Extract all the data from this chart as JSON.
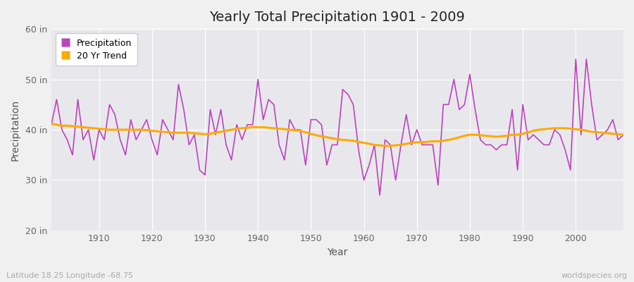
{
  "title": "Yearly Total Precipitation 1901 - 2009",
  "xlabel": "Year",
  "ylabel": "Precipitation",
  "subtitle_left": "Latitude 18.25 Longitude -68.75",
  "subtitle_right": "worldspecies.org",
  "ylim": [
    20,
    60
  ],
  "yticks": [
    20,
    30,
    40,
    50,
    60
  ],
  "ytick_labels": [
    "20 in",
    "30 in",
    "40 in",
    "50 in",
    "60 in"
  ],
  "xlim": [
    1901,
    2009
  ],
  "xticks": [
    1910,
    1920,
    1930,
    1940,
    1950,
    1960,
    1970,
    1980,
    1990,
    2000
  ],
  "precipitation_color": "#bb44bb",
  "trend_color": "#ffaa00",
  "fig_bg_color": "#f0f0f0",
  "plot_bg_color": "#e8e8ec",
  "grid_color": "#ffffff",
  "years": [
    1901,
    1902,
    1903,
    1904,
    1905,
    1906,
    1907,
    1908,
    1909,
    1910,
    1911,
    1912,
    1913,
    1914,
    1915,
    1916,
    1917,
    1918,
    1919,
    1920,
    1921,
    1922,
    1923,
    1924,
    1925,
    1926,
    1927,
    1928,
    1929,
    1930,
    1931,
    1932,
    1933,
    1934,
    1935,
    1936,
    1937,
    1938,
    1939,
    1940,
    1941,
    1942,
    1943,
    1944,
    1945,
    1946,
    1947,
    1948,
    1949,
    1950,
    1951,
    1952,
    1953,
    1954,
    1955,
    1956,
    1957,
    1958,
    1959,
    1960,
    1961,
    1962,
    1963,
    1964,
    1965,
    1966,
    1967,
    1968,
    1969,
    1970,
    1971,
    1972,
    1973,
    1974,
    1975,
    1976,
    1977,
    1978,
    1979,
    1980,
    1981,
    1982,
    1983,
    1984,
    1985,
    1986,
    1987,
    1988,
    1989,
    1990,
    1991,
    1992,
    1993,
    1994,
    1995,
    1996,
    1997,
    1998,
    1999,
    2000,
    2001,
    2002,
    2003,
    2004,
    2005,
    2006,
    2007,
    2008,
    2009
  ],
  "precipitation": [
    41,
    46,
    40,
    38,
    35,
    46,
    38,
    40,
    34,
    40,
    38,
    45,
    43,
    38,
    35,
    42,
    38,
    40,
    42,
    38,
    35,
    42,
    40,
    38,
    49,
    44,
    37,
    39,
    32,
    31,
    44,
    39,
    44,
    37,
    34,
    41,
    38,
    41,
    41,
    50,
    42,
    46,
    45,
    37,
    34,
    42,
    40,
    40,
    33,
    42,
    42,
    41,
    33,
    37,
    37,
    48,
    47,
    45,
    36,
    30,
    33,
    37,
    27,
    38,
    37,
    30,
    37,
    43,
    37,
    40,
    37,
    37,
    37,
    29,
    45,
    45,
    50,
    44,
    45,
    51,
    44,
    38,
    37,
    37,
    36,
    37,
    37,
    44,
    32,
    45,
    38,
    39,
    38,
    37,
    37,
    40,
    39,
    36,
    32,
    54,
    39,
    54,
    45,
    38,
    39,
    40,
    42,
    38,
    39
  ],
  "trend": [
    41.2,
    41.0,
    40.8,
    40.8,
    40.7,
    40.6,
    40.5,
    40.4,
    40.3,
    40.2,
    40.1,
    40.0,
    40.0,
    40.0,
    40.0,
    40.0,
    40.0,
    40.0,
    39.9,
    39.8,
    39.7,
    39.6,
    39.5,
    39.4,
    39.4,
    39.4,
    39.4,
    39.3,
    39.2,
    39.1,
    39.2,
    39.4,
    39.6,
    39.8,
    40.0,
    40.2,
    40.3,
    40.4,
    40.5,
    40.5,
    40.5,
    40.4,
    40.3,
    40.2,
    40.1,
    40.0,
    39.9,
    39.8,
    39.5,
    39.2,
    38.9,
    38.7,
    38.5,
    38.3,
    38.1,
    38.0,
    37.9,
    37.8,
    37.6,
    37.4,
    37.2,
    37.0,
    36.9,
    36.8,
    36.8,
    36.9,
    37.0,
    37.2,
    37.4,
    37.5,
    37.5,
    37.6,
    37.7,
    37.7,
    37.8,
    38.0,
    38.2,
    38.5,
    38.8,
    39.0,
    39.0,
    38.9,
    38.8,
    38.7,
    38.6,
    38.7,
    38.8,
    39.0,
    39.0,
    39.2,
    39.5,
    39.8,
    40.0,
    40.1,
    40.2,
    40.3,
    40.3,
    40.3,
    40.2,
    40.1,
    40.0,
    39.8,
    39.6,
    39.5,
    39.4,
    39.3,
    39.2,
    39.1,
    39.0
  ]
}
